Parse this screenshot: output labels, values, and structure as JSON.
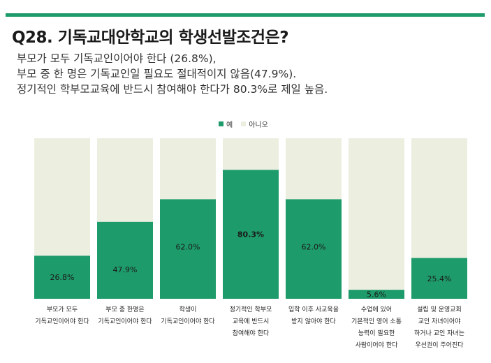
{
  "title": "Q28. 기독교대안학교의 학생선발조건은?",
  "subtitle_lines": [
    "부모가 모두 기독교인이어야 한다 (26.8%),",
    "부모 중 한 명은 기독교인일 필요도 절대적이지 않음(47.9%).",
    "정기적인 학부모교육에 반드시 참여해야 한다가 80.3%로 제일 높음."
  ],
  "colors": {
    "accent": "#1e9b6b",
    "yes": "#1e9b6b",
    "no": "#ecefe0"
  },
  "chart_data": {
    "type": "bar",
    "stacked": true,
    "legend_position": "top-center",
    "ylim": [
      0,
      100
    ],
    "categories": [
      [
        "부모가 모두",
        "기독교인이어야 한다"
      ],
      [
        "부모 중 한명은",
        "기독교인이어야 한다"
      ],
      [
        "학생이",
        "기독교인이어야 한다"
      ],
      [
        "정기적인 학부모",
        "교육에 반드시",
        "참여해야 한다"
      ],
      [
        "입학 이후 사교육을",
        "받지 않아야 한다"
      ],
      [
        "수업에 있어",
        "기본적인 영어 소통",
        "능력이 필요한",
        "사람이어야 한다"
      ],
      [
        "설립 및 운영교회",
        "교인 자녀이어야",
        "하거나 교인 자녀는",
        "우선권이 주어진다"
      ]
    ],
    "series": [
      {
        "name": "예",
        "values": [
          26.8,
          47.9,
          62.0,
          80.3,
          62.0,
          5.6,
          25.4
        ]
      },
      {
        "name": "아니오",
        "values": [
          73.2,
          52.1,
          38.0,
          19.7,
          38.0,
          94.4,
          74.6
        ]
      }
    ],
    "value_labels": [
      "26.8%",
      "47.9%",
      "62.0%",
      "80.3%",
      "62.0%",
      "5.6%",
      "25.4%"
    ],
    "highlight_index": 3
  }
}
